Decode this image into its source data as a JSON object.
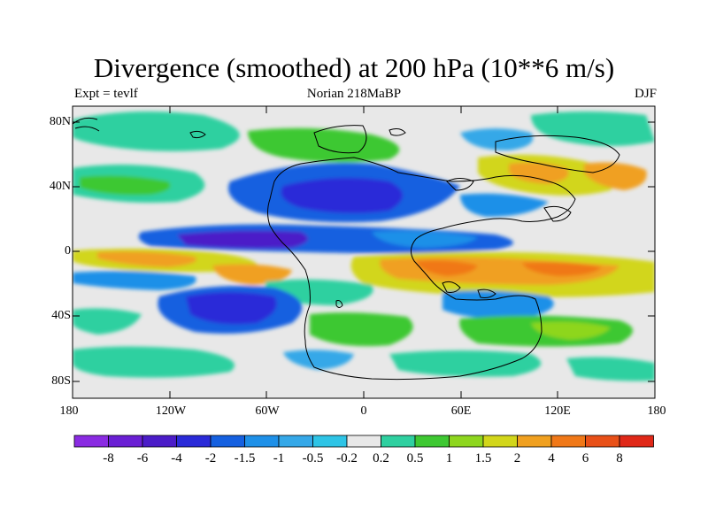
{
  "title": "Divergence (smoothed) at 200 hPa (10**6 m/s)",
  "subtitle_left": "Expt = tevlf",
  "subtitle_center": "Norian 218MaBP",
  "subtitle_right": "DJF",
  "y_ticks": [
    "80N",
    "40N",
    "0",
    "40S",
    "80S"
  ],
  "x_ticks": [
    "180",
    "120W",
    "60W",
    "0",
    "60E",
    "120E",
    "180"
  ],
  "colorbar_labels": [
    "-8",
    "-6",
    "-4",
    "-2",
    "-1.5",
    "-1",
    "-0.5",
    "-0.2",
    "0.2",
    "0.5",
    "1",
    "1.5",
    "2",
    "4",
    "6",
    "8"
  ],
  "colorbar_colors": [
    "#8a2be2",
    "#6a1fd4",
    "#4b1cc8",
    "#2a2ad8",
    "#1560e0",
    "#1e90e8",
    "#35a8e8",
    "#2ec4e6",
    "#e8e8e8",
    "#2fd0a0",
    "#3ec832",
    "#8ed61e",
    "#d2d61a",
    "#f0a020",
    "#f07818",
    "#e85018",
    "#e02818"
  ],
  "chart_data": {
    "type": "map",
    "variable": "Divergence (smoothed) at 200 hPa",
    "units": "10**6 m/s",
    "experiment": "tevlf",
    "period": "Norian 218MaBP",
    "season": "DJF",
    "lon_range": [
      -180,
      180
    ],
    "lat_range": [
      -90,
      90
    ],
    "contour_levels": [
      -8,
      -6,
      -4,
      -2,
      -1.5,
      -1,
      -0.5,
      -0.2,
      0.2,
      0.5,
      1,
      1.5,
      2,
      4,
      6,
      8
    ]
  }
}
